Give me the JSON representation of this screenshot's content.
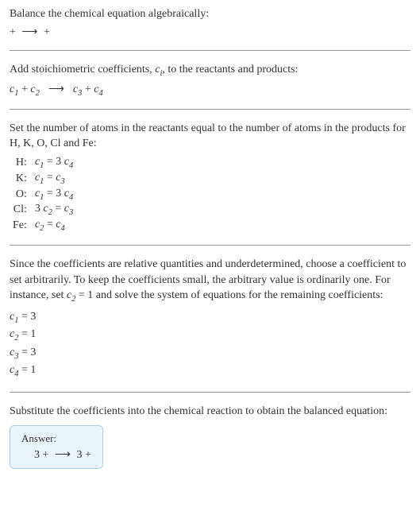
{
  "intro": {
    "line1": "Balance the chemical equation algebraically:",
    "eq_before1": " + ",
    "arrow": "⟶",
    "eq_after1": " + "
  },
  "stoich": {
    "text_a": "Add stoichiometric coefficients, ",
    "ci": "c",
    "ci_sub": "i",
    "text_b": ", to the reactants and products:",
    "c1": "c",
    "c1_sub": "1",
    "plus1": " + ",
    "c2": "c",
    "c2_sub": "2",
    "arrow": "⟶",
    "c3": "c",
    "c3_sub": "3",
    "plus2": " + ",
    "c4": "c",
    "c4_sub": "4"
  },
  "atoms": {
    "intro": "Set the number of atoms in the reactants equal to the number of atoms in the products for H, K, O, Cl and Fe:",
    "rows": [
      {
        "elem": "H:",
        "lhs_c": "c",
        "lhs_sub": "1",
        "eq": " = 3 ",
        "rhs_c": "c",
        "rhs_sub": "4"
      },
      {
        "elem": "K:",
        "lhs_c": "c",
        "lhs_sub": "1",
        "eq": " = ",
        "rhs_c": "c",
        "rhs_sub": "3"
      },
      {
        "elem": "O:",
        "lhs_c": "c",
        "lhs_sub": "1",
        "eq": " = 3 ",
        "rhs_c": "c",
        "rhs_sub": "4"
      },
      {
        "elem": "Cl:",
        "lhs_pre": "3 ",
        "lhs_c": "c",
        "lhs_sub": "2",
        "eq": " = ",
        "rhs_c": "c",
        "rhs_sub": "3"
      },
      {
        "elem": "Fe:",
        "lhs_c": "c",
        "lhs_sub": "2",
        "eq": " = ",
        "rhs_c": "c",
        "rhs_sub": "4"
      }
    ]
  },
  "solve": {
    "text_a": "Since the coefficients are relative quantities and underdetermined, choose a coefficient to set arbitrarily. To keep the coefficients small, the arbitrary value is ordinarily one. For instance, set ",
    "cset": "c",
    "cset_sub": "2",
    "text_b": " = 1 and solve the system of equations for the remaining coefficients:",
    "coeffs": [
      {
        "c": "c",
        "sub": "1",
        "val": " = 3"
      },
      {
        "c": "c",
        "sub": "2",
        "val": " = 1"
      },
      {
        "c": "c",
        "sub": "3",
        "val": " = 3"
      },
      {
        "c": "c",
        "sub": "4",
        "val": " = 1"
      }
    ]
  },
  "subst": {
    "text": "Substitute the coefficients into the chemical reaction to obtain the balanced equation:"
  },
  "answer": {
    "label": "Answer:",
    "lhs": "3 + ",
    "arrow": "⟶",
    "rhs": " 3 + "
  },
  "colors": {
    "text": "#333333",
    "rule": "#999999",
    "answer_bg": "#eaf4fb",
    "answer_border": "#b0cde0"
  }
}
